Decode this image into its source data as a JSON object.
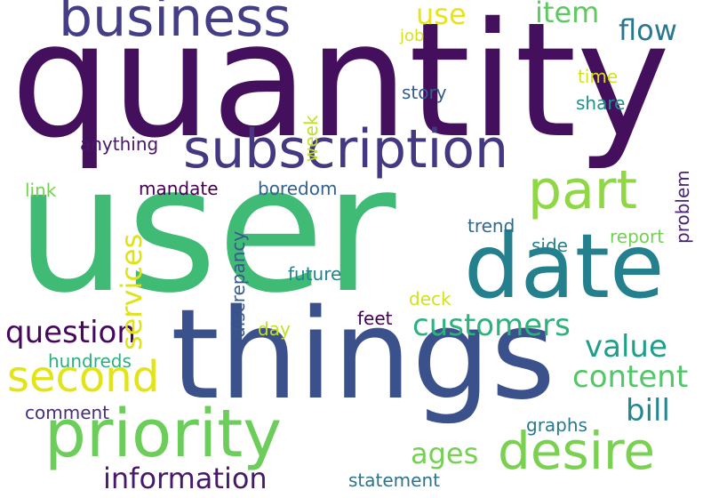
{
  "words": [
    {
      "text": "quantity",
      "color": "#440f5c"
    },
    {
      "text": "user",
      "color": "#3fbb75"
    },
    {
      "text": "things",
      "color": "#3b518b"
    },
    {
      "text": "date",
      "color": "#25808e"
    },
    {
      "text": "business",
      "color": "#433e85"
    },
    {
      "text": "subscription",
      "color": "#453781"
    },
    {
      "text": "priority",
      "color": "#6ccd5a"
    },
    {
      "text": "desire",
      "color": "#7ad151"
    },
    {
      "text": "part",
      "color": "#8fd744"
    },
    {
      "text": "second",
      "color": "#e3e418"
    },
    {
      "text": "question",
      "color": "#46085c"
    },
    {
      "text": "customers",
      "color": "#2db27d"
    },
    {
      "text": "content",
      "color": "#54c568"
    },
    {
      "text": "value",
      "color": "#1f9e89"
    },
    {
      "text": "bill",
      "color": "#24878e"
    },
    {
      "text": "ages",
      "color": "#75d054"
    },
    {
      "text": "information",
      "color": "#48196b"
    },
    {
      "text": "services",
      "color": "#dde318"
    },
    {
      "text": "flow",
      "color": "#2a788e"
    },
    {
      "text": "item",
      "color": "#5ec962"
    },
    {
      "text": "use",
      "color": "#e8e419"
    },
    {
      "text": "job",
      "color": "#d8e219"
    },
    {
      "text": "time",
      "color": "#d5e21a"
    },
    {
      "text": "story",
      "color": "#365c8d"
    },
    {
      "text": "share",
      "color": "#21908d"
    },
    {
      "text": "week",
      "color": "#bddf26"
    },
    {
      "text": "problem",
      "color": "#482374"
    },
    {
      "text": "anything",
      "color": "#481668"
    },
    {
      "text": "mandate",
      "color": "#440154"
    },
    {
      "text": "boredom",
      "color": "#33638d"
    },
    {
      "text": "link",
      "color": "#75d054"
    },
    {
      "text": "discrepancy",
      "color": "#38588c"
    },
    {
      "text": "trend",
      "color": "#31688e"
    },
    {
      "text": "side",
      "color": "#277f8e"
    },
    {
      "text": "report",
      "color": "#73d056"
    },
    {
      "text": "future",
      "color": "#25838e"
    },
    {
      "text": "deck",
      "color": "#d2e21b"
    },
    {
      "text": "day",
      "color": "#c0df25"
    },
    {
      "text": "feet",
      "color": "#440154"
    },
    {
      "text": "hundreds",
      "color": "#2ab07f"
    },
    {
      "text": "comment",
      "color": "#472d7b"
    },
    {
      "text": "graphs",
      "color": "#2a788e"
    },
    {
      "text": "statement",
      "color": "#2c738e"
    }
  ]
}
